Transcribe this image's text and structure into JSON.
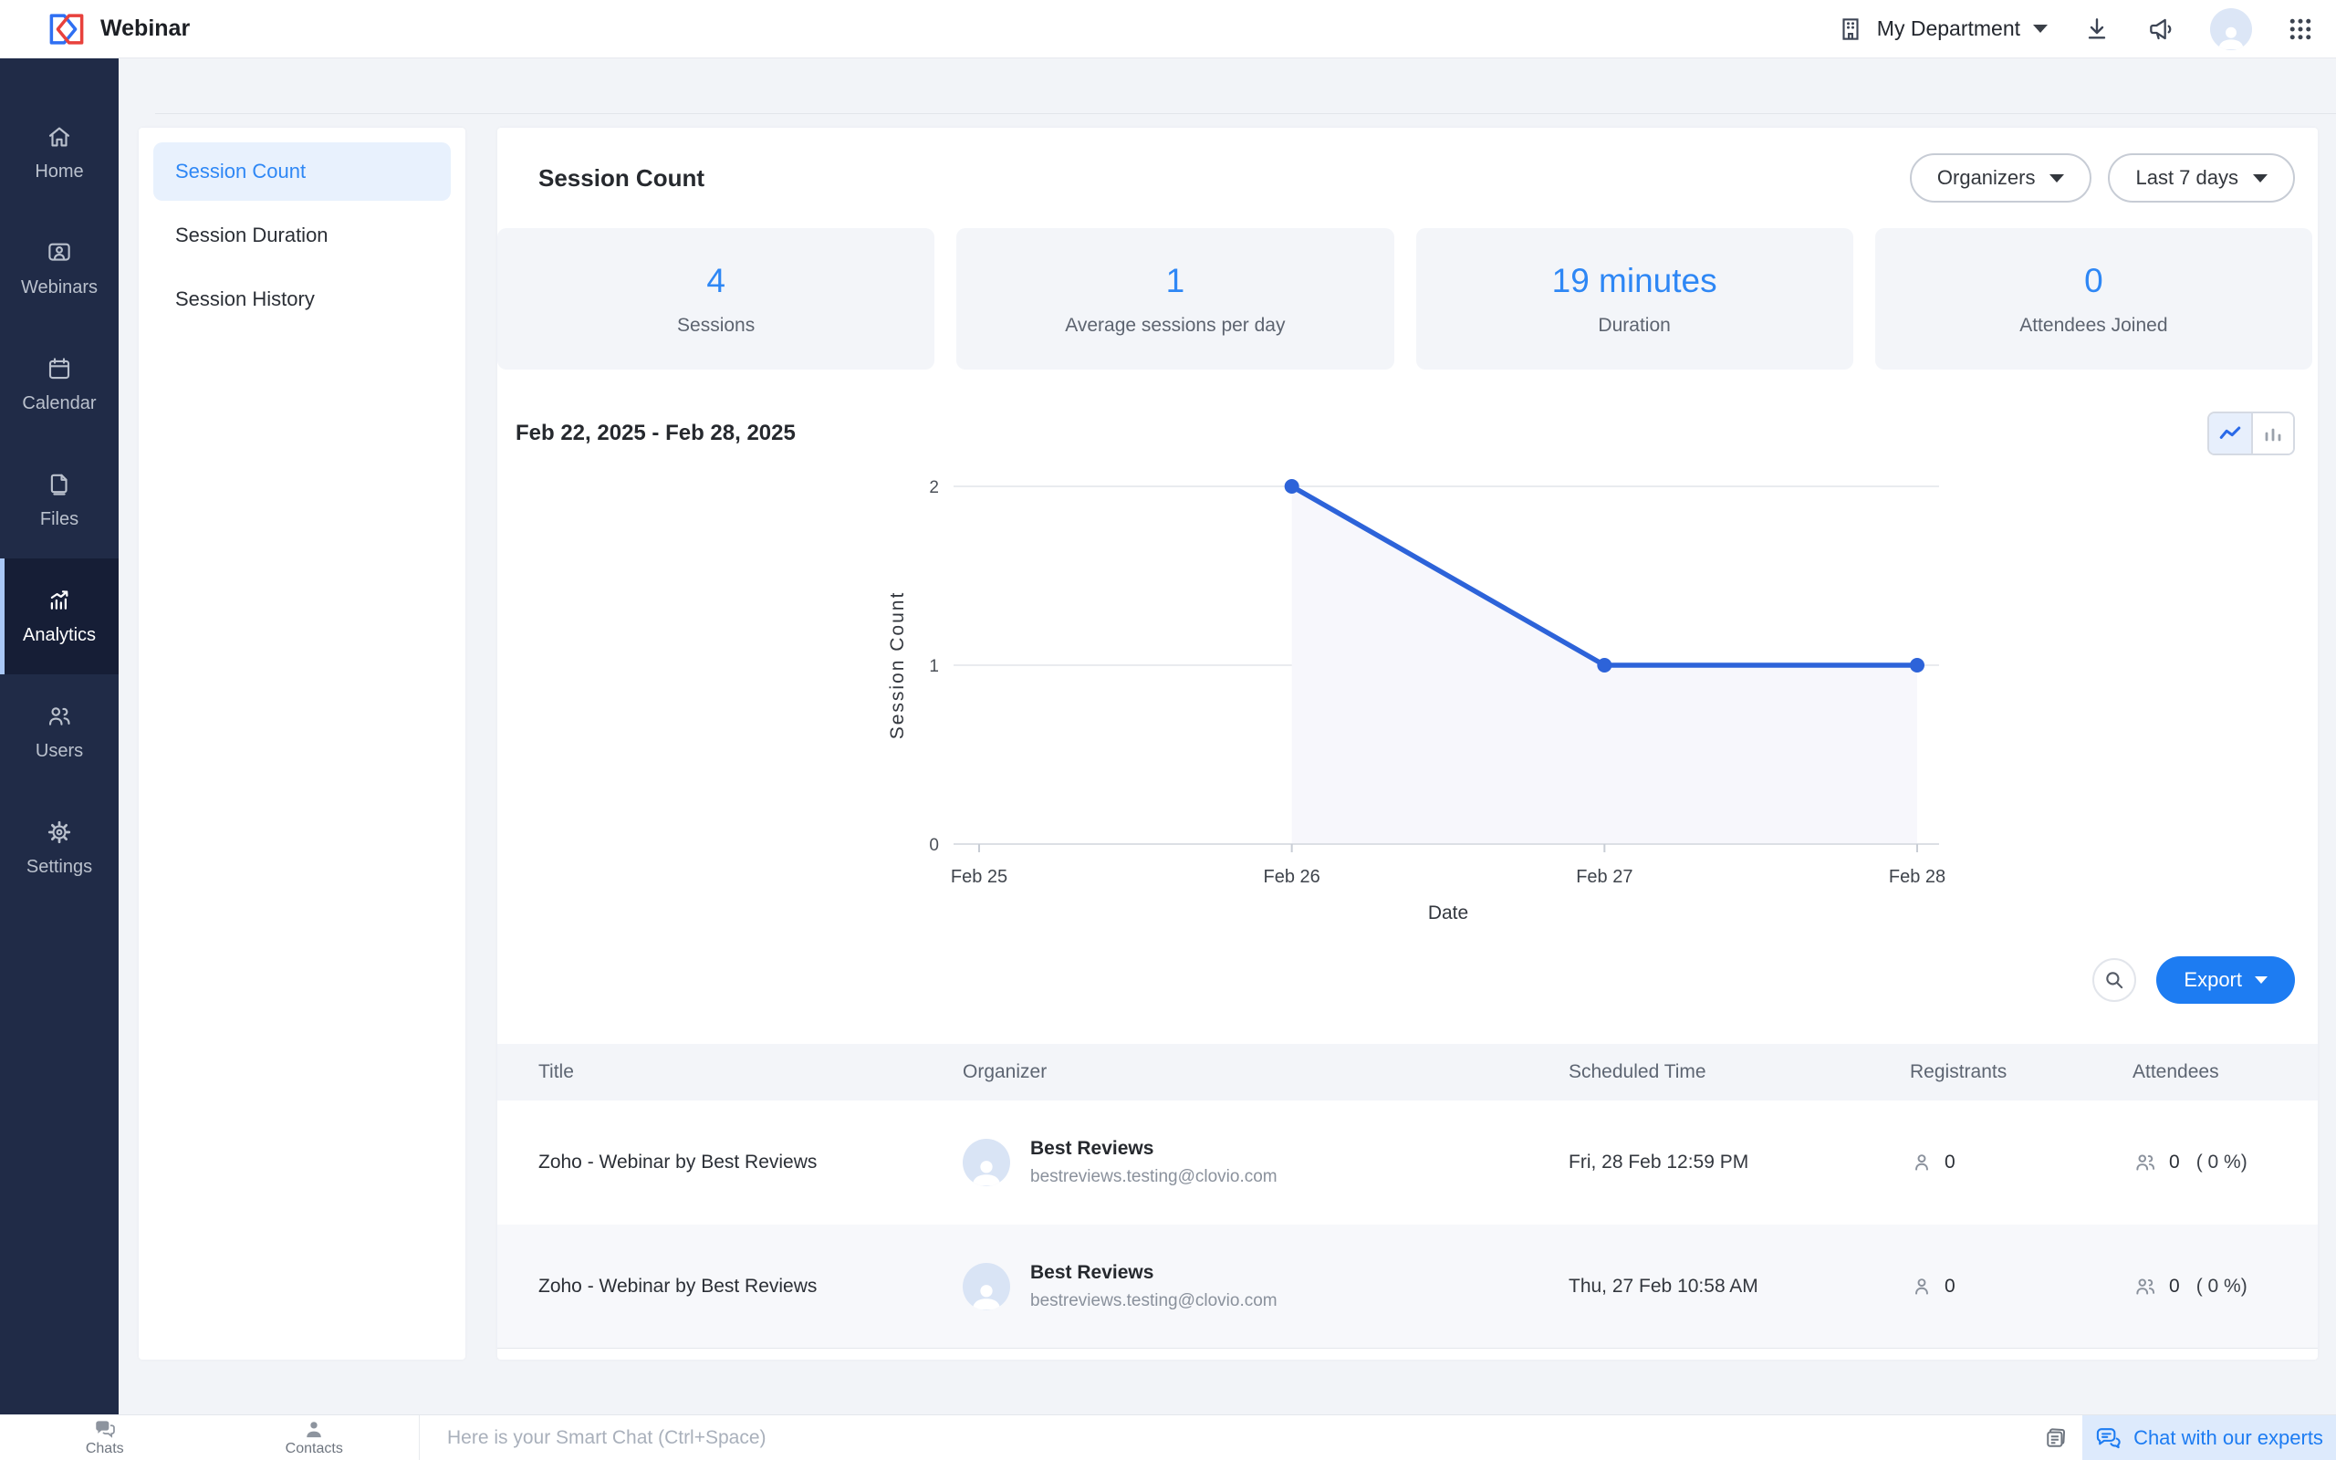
{
  "header": {
    "app_title": "Webinar",
    "department_label": "My Department"
  },
  "sidebar": {
    "items": [
      {
        "label": "Home",
        "active": false
      },
      {
        "label": "Webinars",
        "active": false
      },
      {
        "label": "Calendar",
        "active": false
      },
      {
        "label": "Files",
        "active": false
      },
      {
        "label": "Analytics",
        "active": true
      },
      {
        "label": "Users",
        "active": false
      },
      {
        "label": "Settings",
        "active": false
      }
    ]
  },
  "submenu": {
    "items": [
      {
        "label": "Session Count",
        "active": true
      },
      {
        "label": "Session Duration",
        "active": false
      },
      {
        "label": "Session History",
        "active": false
      }
    ]
  },
  "main": {
    "title": "Session Count",
    "filters": {
      "organizers": "Organizers",
      "range": "Last 7 days"
    },
    "stats": [
      {
        "value": "4",
        "label": "Sessions"
      },
      {
        "value": "1",
        "label": "Average sessions per day"
      },
      {
        "value": "19 minutes",
        "label": "Duration"
      },
      {
        "value": "0",
        "label": "Attendees Joined"
      }
    ],
    "date_range": "Feb 22, 2025 - Feb 28, 2025",
    "export_label": "Export"
  },
  "chart_data": {
    "type": "line",
    "title": "Feb 22, 2025 - Feb 28, 2025",
    "x": [
      "Feb 25",
      "Feb 26",
      "Feb 27",
      "Feb 28"
    ],
    "series": [
      {
        "name": "Session Count",
        "points": [
          {
            "x": "Feb 26",
            "y": 2
          },
          {
            "x": "Feb 27",
            "y": 1
          },
          {
            "x": "Feb 28",
            "y": 1
          }
        ]
      }
    ],
    "xlabel": "Date",
    "ylabel": "Session Count",
    "yticks": [
      0,
      1,
      2
    ],
    "ylim": [
      0,
      2
    ],
    "grid": true,
    "legend": false,
    "line_color": "#2d63d9",
    "area_fill": "#f7f7fc"
  },
  "table": {
    "columns": [
      "Title",
      "Organizer",
      "Scheduled Time",
      "Registrants",
      "Attendees"
    ],
    "rows": [
      {
        "title": "Zoho - Webinar by Best Reviews",
        "organizer_name": "Best Reviews",
        "organizer_email": "bestreviews.testing@clovio.com",
        "scheduled_time": "Fri, 28 Feb 12:59 PM",
        "registrants": "0",
        "attendees": "0",
        "attendees_pct": "( 0 %)"
      },
      {
        "title": "Zoho - Webinar by Best Reviews",
        "organizer_name": "Best Reviews",
        "organizer_email": "bestreviews.testing@clovio.com",
        "scheduled_time": "Thu, 27 Feb 10:58 AM",
        "registrants": "0",
        "attendees": "0",
        "attendees_pct": "( 0 %)"
      }
    ]
  },
  "footer": {
    "chats_label": "Chats",
    "contacts_label": "Contacts",
    "smart_chat_placeholder": "Here is your Smart Chat (Ctrl+Space)",
    "chat_experts_label": "Chat with our experts"
  },
  "colors": {
    "accent": "#1d7cf2",
    "sidebar_bg": "#202b47",
    "chart_line": "#2d63d9",
    "chart_area": "#f7f7fc"
  }
}
